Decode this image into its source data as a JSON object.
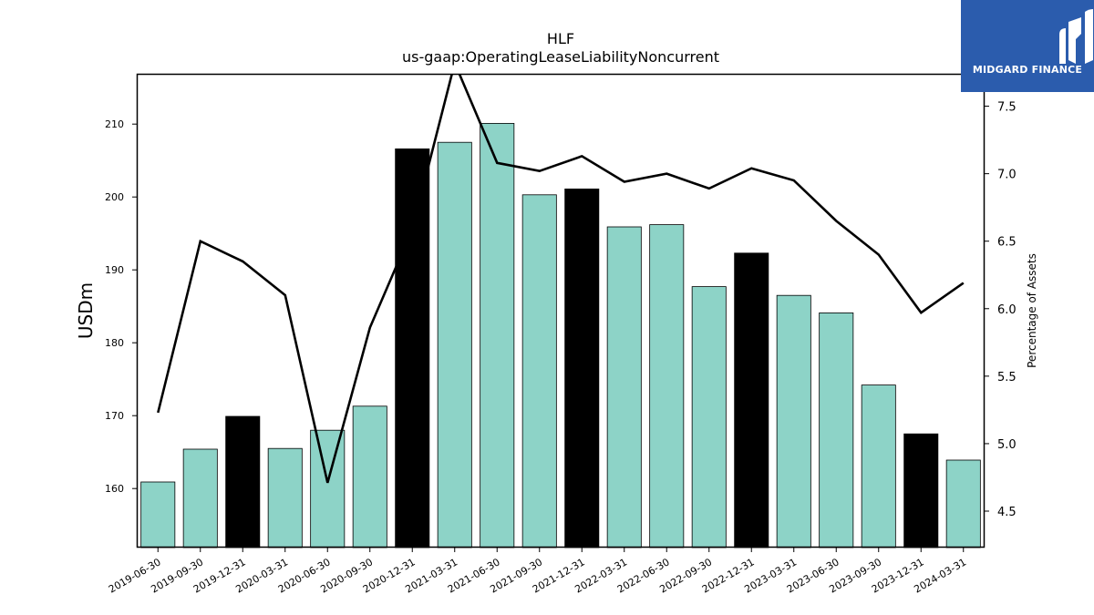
{
  "chart_data": {
    "type": "bar",
    "title": "HLF",
    "subtitle": "us-gaap:OperatingLeaseLiabilityNoncurrent",
    "ylabel": "USDm",
    "y2label": "Percentage of Assets",
    "ylim": [
      151.9,
      216.9
    ],
    "y2lim": [
      4.23,
      7.74
    ],
    "yticks": [
      160,
      170,
      180,
      190,
      200,
      210
    ],
    "y2ticks": [
      4.5,
      5.0,
      5.5,
      6.0,
      6.5,
      7.0,
      7.5
    ],
    "categories": [
      "2019-06-30",
      "2019-09-30",
      "2019-12-31",
      "2020-03-31",
      "2020-06-30",
      "2020-09-30",
      "2020-12-31",
      "2021-03-31",
      "2021-06-30",
      "2021-09-30",
      "2021-12-31",
      "2022-03-31",
      "2022-06-30",
      "2022-09-30",
      "2022-12-31",
      "2023-03-31",
      "2023-06-30",
      "2023-09-30",
      "2023-12-31",
      "2024-03-31"
    ],
    "series": [
      {
        "type": "bar",
        "axis": "left",
        "values": [
          160.9,
          165.4,
          169.9,
          165.5,
          168.0,
          171.3,
          206.6,
          207.5,
          210.1,
          200.3,
          201.1,
          195.9,
          196.2,
          187.7,
          192.3,
          186.5,
          184.1,
          174.2,
          167.5,
          163.9
        ],
        "colors": [
          "#8dd3c7",
          "#8dd3c7",
          "#000000",
          "#8dd3c7",
          "#8dd3c7",
          "#8dd3c7",
          "#000000",
          "#8dd3c7",
          "#8dd3c7",
          "#8dd3c7",
          "#000000",
          "#8dd3c7",
          "#8dd3c7",
          "#8dd3c7",
          "#000000",
          "#8dd3c7",
          "#8dd3c7",
          "#8dd3c7",
          "#000000",
          "#8dd3c7"
        ]
      },
      {
        "type": "line",
        "axis": "right",
        "color": "#000000",
        "values": [
          5.23,
          6.5,
          6.35,
          6.1,
          4.71,
          5.86,
          6.59,
          7.82,
          7.08,
          7.02,
          7.13,
          6.94,
          7.0,
          6.89,
          7.04,
          6.95,
          6.65,
          6.4,
          5.97,
          6.19
        ]
      }
    ],
    "grid": false,
    "legend": "none"
  },
  "logo": {
    "text": "MIDGARD FINANCE",
    "bg_color": "#2b5cad"
  }
}
